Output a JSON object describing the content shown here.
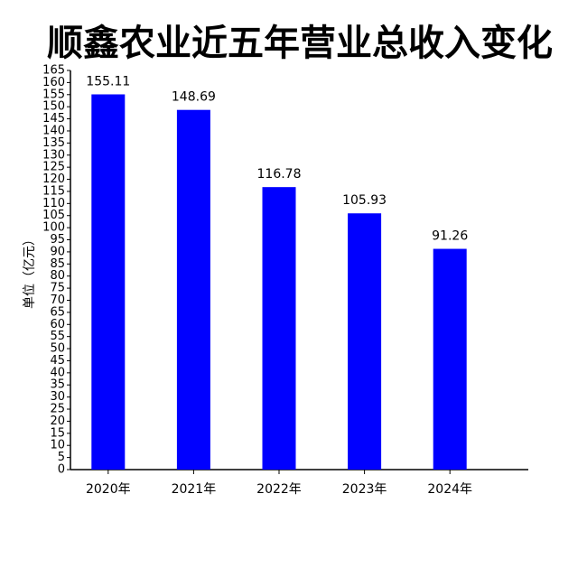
{
  "chart_data": {
    "type": "bar",
    "title": "顺鑫农业近五年营业总收入变化",
    "ylabel": "单位（亿元）",
    "categories": [
      "2020年",
      "2021年",
      "2022年",
      "2023年",
      "2024年"
    ],
    "values": [
      155.11,
      148.69,
      116.78,
      105.93,
      91.26
    ],
    "color": "#0000ff",
    "ylim": [
      0,
      165
    ],
    "yticks": [
      0,
      5,
      10,
      15,
      20,
      25,
      30,
      35,
      40,
      45,
      50,
      55,
      60,
      65,
      70,
      75,
      80,
      85,
      90,
      95,
      100,
      105,
      110,
      115,
      120,
      125,
      130,
      135,
      140,
      145,
      150,
      155,
      160,
      165
    ],
    "grid": false
  }
}
